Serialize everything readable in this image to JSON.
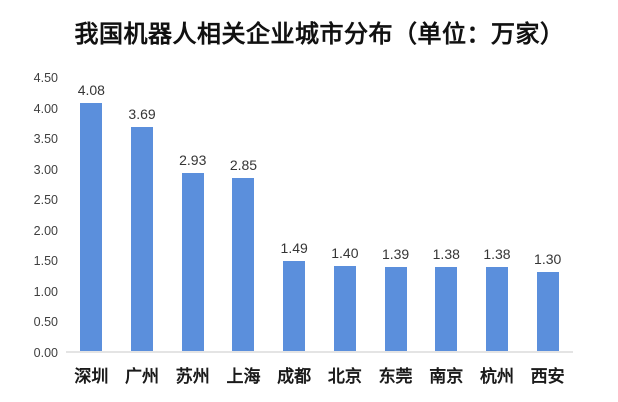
{
  "title": "我国机器人相关企业城市分布（单位：万家）",
  "chart_data": {
    "type": "bar",
    "title": "我国机器人相关企业城市分布（单位：万家）",
    "categories": [
      "深圳",
      "广州",
      "苏州",
      "上海",
      "成都",
      "北京",
      "东莞",
      "南京",
      "杭州",
      "西安"
    ],
    "values": [
      4.08,
      3.69,
      2.93,
      2.85,
      1.49,
      1.4,
      1.39,
      1.38,
      1.38,
      1.3
    ],
    "value_labels": [
      "4.08",
      "3.69",
      "2.93",
      "2.85",
      "1.49",
      "1.40",
      "1.39",
      "1.38",
      "1.38",
      "1.30"
    ],
    "xlabel": "",
    "ylabel": "",
    "ylim": [
      0,
      4.5
    ],
    "ytick_step": 0.5,
    "ytick_labels": [
      "0.00",
      "0.50",
      "1.00",
      "1.50",
      "2.00",
      "2.50",
      "3.00",
      "3.50",
      "4.00",
      "4.50"
    ],
    "bar_color": "#5B8FDC",
    "axis_line_color": "#E4E4E4",
    "grid": false,
    "legend": false,
    "data_labels_shown": true
  }
}
